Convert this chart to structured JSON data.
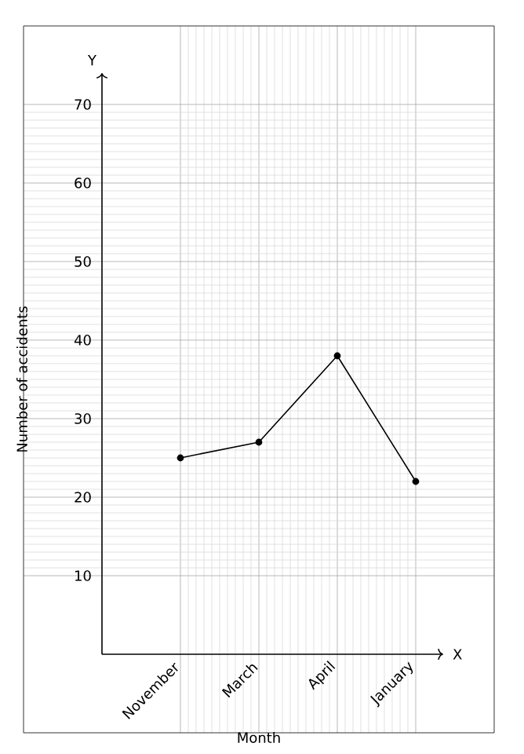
{
  "chart_data": {
    "type": "line",
    "xlabel": "Month",
    "ylabel": "Number of accidents",
    "categories": [
      "November",
      "March",
      "April",
      "January"
    ],
    "series": [
      {
        "color": "#000000",
        "values": [
          25,
          27,
          38,
          22
        ]
      }
    ],
    "ylim": [
      -10,
      80
    ],
    "yticks": [
      10,
      20,
      30,
      40,
      50,
      60,
      70
    ],
    "grid": true,
    "marker": "circle",
    "line_style": "solid",
    "annotations": [
      "Y",
      "X"
    ]
  }
}
